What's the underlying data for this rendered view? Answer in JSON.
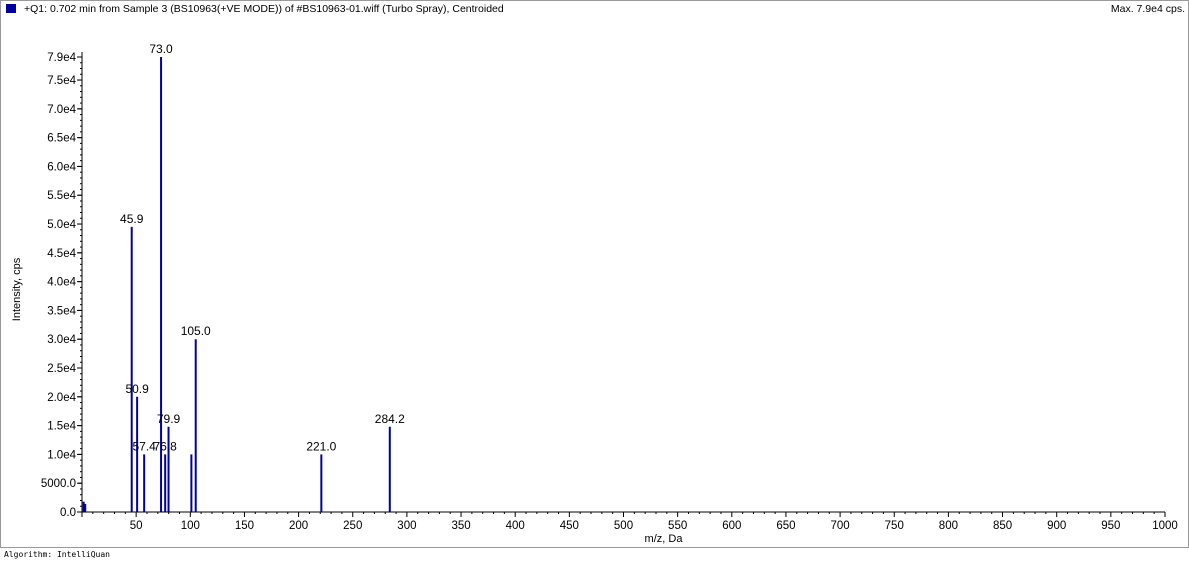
{
  "header": {
    "title": "+Q1: 0.702 min from Sample 3 (BS10963(+VE MODE)) of #BS10963-01.wiff (Turbo Spray), Centroided",
    "max_label": "Max. 7.9e4 cps.",
    "swatch_color": "#0000a0"
  },
  "footer": {
    "algorithm": "Algorithm: IntelliQuan"
  },
  "chart_data": {
    "type": "bar",
    "xlabel": "m/z, Da",
    "ylabel": "Intensity, cps",
    "xlim": [
      0,
      1000
    ],
    "ylim": [
      0,
      80000
    ],
    "color": "#0000a0",
    "x_ticks": [
      50,
      100,
      150,
      200,
      250,
      300,
      350,
      400,
      450,
      500,
      550,
      600,
      650,
      700,
      750,
      800,
      850,
      900,
      950,
      1000
    ],
    "y_ticks": [
      {
        "value": 0,
        "label": "0.0"
      },
      {
        "value": 5000,
        "label": "5000.0"
      },
      {
        "value": 10000,
        "label": "1.0e4"
      },
      {
        "value": 15000,
        "label": "1.5e4"
      },
      {
        "value": 20000,
        "label": "2.0e4"
      },
      {
        "value": 25000,
        "label": "2.5e4"
      },
      {
        "value": 30000,
        "label": "3.0e4"
      },
      {
        "value": 35000,
        "label": "3.5e4"
      },
      {
        "value": 40000,
        "label": "4.0e4"
      },
      {
        "value": 45000,
        "label": "4.5e4"
      },
      {
        "value": 50000,
        "label": "5.0e4"
      },
      {
        "value": 55000,
        "label": "5.5e4"
      },
      {
        "value": 60000,
        "label": "6.0e4"
      },
      {
        "value": 65000,
        "label": "6.5e4"
      },
      {
        "value": 70000,
        "label": "7.0e4"
      },
      {
        "value": 75000,
        "label": "7.5e4"
      },
      {
        "value": 79000,
        "label": "7.9e4"
      }
    ],
    "peaks": [
      {
        "x": 45.9,
        "y": 49500,
        "label": "45.9"
      },
      {
        "x": 50.9,
        "y": 20000,
        "label": "50.9"
      },
      {
        "x": 57.4,
        "y": 10000,
        "label": "57.4"
      },
      {
        "x": 73.0,
        "y": 79000,
        "label": "73.0"
      },
      {
        "x": 76.8,
        "y": 10000,
        "label": "76.8"
      },
      {
        "x": 79.9,
        "y": 14800,
        "label": "79.9"
      },
      {
        "x": 101.0,
        "y": 10000,
        "label": ""
      },
      {
        "x": 105.0,
        "y": 30000,
        "label": "105.0"
      },
      {
        "x": 221.0,
        "y": 10000,
        "label": "221.0"
      },
      {
        "x": 284.2,
        "y": 14800,
        "label": "284.2"
      },
      {
        "x": 1.5,
        "y": 1800,
        "label": ""
      },
      {
        "x": 3.0,
        "y": 1400,
        "label": ""
      }
    ]
  }
}
